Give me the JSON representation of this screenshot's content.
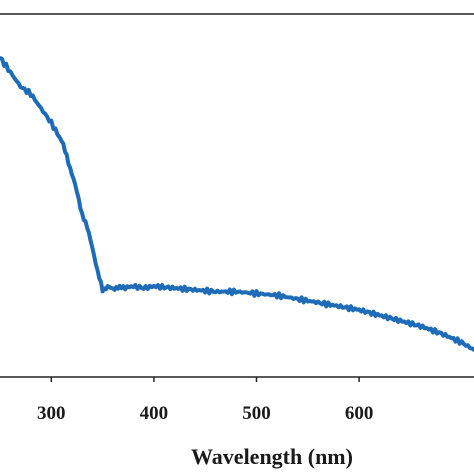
{
  "chart_data": {
    "type": "line",
    "xlabel": "Wavelength (nm)",
    "ylabel": "",
    "xlim": [
      250,
      712
    ],
    "ylim": [
      0,
      1
    ],
    "x_ticks": [
      300,
      400,
      500,
      600
    ],
    "x_tick_labels": [
      "300",
      "400",
      "500",
      "600"
    ],
    "grid": false,
    "color": "#1e6bb8",
    "series": [
      {
        "x": [
          250,
          260,
          270,
          280,
          290,
          300,
          310,
          315,
          320,
          325,
          330,
          335,
          340,
          345,
          350,
          355,
          360,
          365,
          370,
          380,
          390,
          400,
          420,
          440,
          460,
          480,
          500,
          520,
          540,
          560,
          580,
          600,
          620,
          640,
          660,
          680,
          700,
          712
        ],
        "values": [
          0.88,
          0.84,
          0.8,
          0.78,
          0.74,
          0.7,
          0.65,
          0.61,
          0.56,
          0.51,
          0.45,
          0.41,
          0.36,
          0.29,
          0.24,
          0.25,
          0.24,
          0.25,
          0.245,
          0.25,
          0.245,
          0.25,
          0.245,
          0.24,
          0.235,
          0.235,
          0.23,
          0.225,
          0.215,
          0.205,
          0.195,
          0.185,
          0.17,
          0.155,
          0.14,
          0.12,
          0.095,
          0.075
        ]
      }
    ]
  }
}
